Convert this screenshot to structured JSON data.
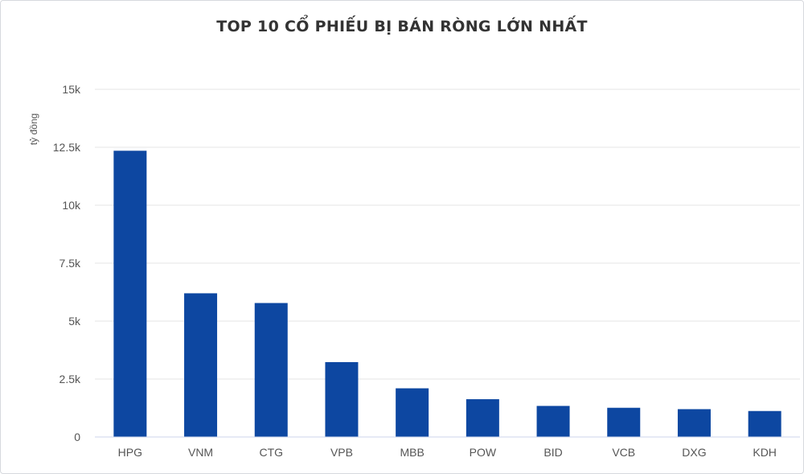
{
  "chart_data": {
    "type": "bar",
    "title": "TOP 10 CỔ PHIẾU BỊ BÁN RÒNG LỚN NHẤT",
    "ylabel": "tỷ đồng",
    "xlabel": "",
    "categories": [
      "HPG",
      "VNM",
      "CTG",
      "VPB",
      "MBB",
      "POW",
      "BID",
      "VCB",
      "DXG",
      "KDH"
    ],
    "values": [
      12350,
      6200,
      5780,
      3230,
      2100,
      1630,
      1340,
      1260,
      1200,
      1120
    ],
    "ylim": [
      0,
      15000
    ],
    "yticks": [
      0,
      2500,
      5000,
      7500,
      10000,
      12500,
      15000
    ],
    "ytick_labels": [
      "0",
      "2.5k",
      "5k",
      "7.5k",
      "10k",
      "12.5k",
      "15k"
    ],
    "grid": true,
    "bar_color": "#0d47a1"
  }
}
